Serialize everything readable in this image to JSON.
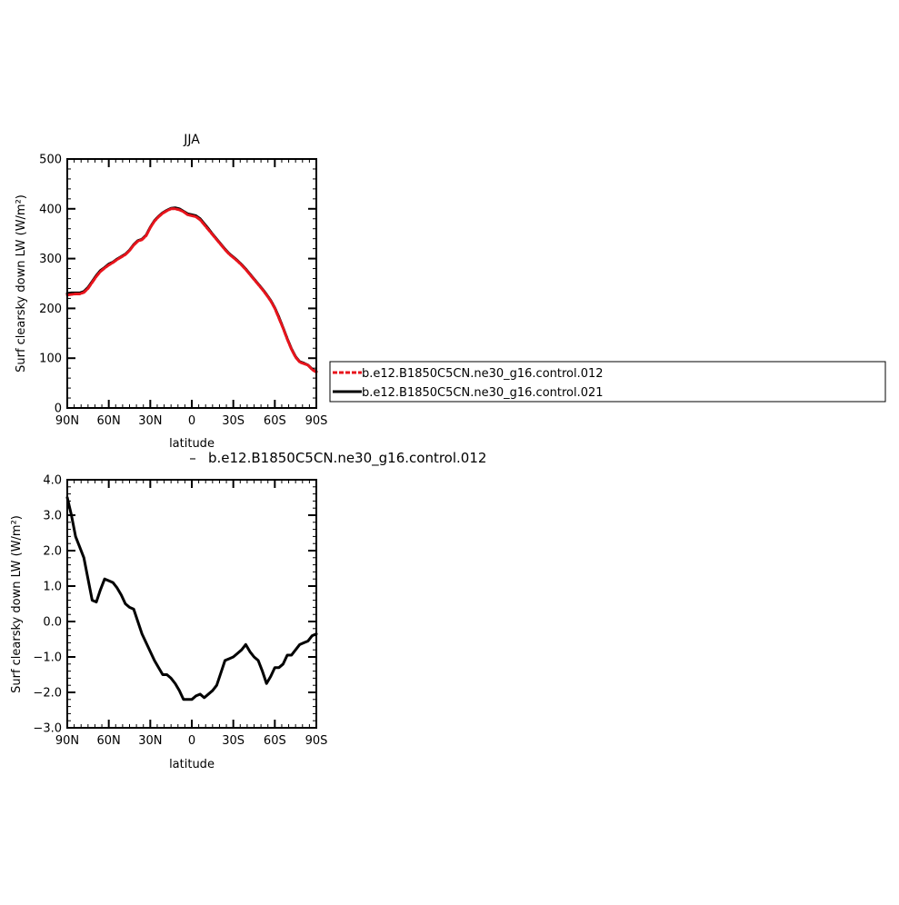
{
  "colors": {
    "axis": "#000000",
    "series_red": "#e8141c",
    "series_black": "#000000"
  },
  "chart_data": [
    {
      "type": "line",
      "title": "JJA",
      "xlabel": "latitude",
      "ylabel": "Surf clearsky down LW (W/m²)",
      "xlim": [
        90,
        -90
      ],
      "ylim": [
        0,
        500
      ],
      "xticks": [
        90,
        60,
        30,
        0,
        -30,
        -60,
        -90
      ],
      "xtick_labels": [
        "90N",
        "60N",
        "30N",
        "0",
        "30S",
        "60S",
        "90S"
      ],
      "yticks": [
        0,
        100,
        200,
        300,
        400,
        500
      ],
      "ytick_labels": [
        "0",
        "100",
        "200",
        "300",
        "400",
        "500"
      ],
      "legend_position": "right",
      "series": [
        {
          "name": "b.e12.B1850C5CN.ne30_g16.control.012",
          "color": "#e8141c",
          "dash": "dashed",
          "x": [
            90,
            87,
            84,
            81,
            78,
            75,
            72,
            69,
            66,
            63,
            60,
            57,
            54,
            51,
            48,
            45,
            42,
            39,
            36,
            33,
            30,
            27,
            24,
            21,
            18,
            15,
            12,
            9,
            6,
            3,
            0,
            -3,
            -6,
            -9,
            -12,
            -15,
            -18,
            -21,
            -24,
            -27,
            -30,
            -33,
            -36,
            -39,
            -42,
            -45,
            -48,
            -51,
            -54,
            -57,
            -60,
            -63,
            -66,
            -69,
            -72,
            -75,
            -78,
            -81,
            -84,
            -87,
            -90
          ],
          "y": [
            227,
            228,
            229,
            229,
            232,
            240,
            252,
            264,
            274,
            281,
            287,
            292,
            298,
            303,
            308,
            316,
            327,
            335,
            338,
            346,
            362,
            375,
            384,
            391,
            396,
            400,
            400,
            398,
            394,
            388,
            386,
            384,
            378,
            368,
            358,
            348,
            338,
            328,
            318,
            309,
            302,
            295,
            287,
            278,
            268,
            258,
            248,
            238,
            227,
            215,
            200,
            180,
            160,
            138,
            118,
            102,
            92,
            89,
            86,
            77,
            72
          ]
        },
        {
          "name": "b.e12.B1850C5CN.ne30_g16.control.021",
          "color": "#000000",
          "dash": "solid",
          "x": [
            90,
            87,
            84,
            81,
            78,
            75,
            72,
            69,
            66,
            63,
            60,
            57,
            54,
            51,
            48,
            45,
            42,
            39,
            36,
            33,
            30,
            27,
            24,
            21,
            18,
            15,
            12,
            9,
            6,
            3,
            0,
            -3,
            -6,
            -9,
            -12,
            -15,
            -18,
            -21,
            -24,
            -27,
            -30,
            -33,
            -36,
            -39,
            -42,
            -45,
            -48,
            -51,
            -54,
            -57,
            -60,
            -63,
            -66,
            -69,
            -72,
            -75,
            -78,
            -81,
            -84,
            -87,
            -90
          ],
          "y": [
            230,
            231,
            231,
            231,
            234,
            242,
            254,
            266,
            276,
            282,
            289,
            293,
            299,
            304,
            309,
            317,
            328,
            336,
            339,
            347,
            363,
            376,
            385,
            392,
            397,
            401,
            402,
            400,
            395,
            390,
            388,
            386,
            380,
            370,
            360,
            349,
            339,
            329,
            319,
            310,
            303,
            296,
            288,
            279,
            269,
            259,
            249,
            239,
            228,
            216,
            201,
            182,
            161,
            139,
            119,
            103,
            93,
            90,
            86,
            78,
            73
          ]
        }
      ]
    },
    {
      "type": "line",
      "title": "b.e12.B1850C5CN.ne30_g16.control.012",
      "xlabel": "latitude",
      "ylabel": "Surf clearsky down LW (W/m²)",
      "xlim": [
        90,
        -90
      ],
      "ylim": [
        -3,
        4
      ],
      "xticks": [
        90,
        60,
        30,
        0,
        -30,
        -60,
        -90
      ],
      "xtick_labels": [
        "90N",
        "60N",
        "30N",
        "0",
        "30S",
        "60S",
        "90S"
      ],
      "yticks": [
        -3,
        -2,
        -1,
        0,
        1,
        2,
        3,
        4
      ],
      "ytick_labels": [
        "−3.0",
        "−2.0",
        "−1.0",
        "0.0",
        "1.0",
        "2.0",
        "3.0",
        "4.0"
      ],
      "series": [
        {
          "color": "#000000",
          "dash": "solid",
          "x": [
            90,
            87,
            84,
            81,
            78,
            75,
            72,
            69,
            66,
            63,
            60,
            57,
            54,
            51,
            48,
            45,
            42,
            39,
            36,
            33,
            30,
            27,
            24,
            21,
            18,
            15,
            12,
            9,
            6,
            3,
            0,
            -3,
            -6,
            -9,
            -12,
            -15,
            -18,
            -21,
            -24,
            -27,
            -30,
            -33,
            -36,
            -39,
            -42,
            -45,
            -48,
            -51,
            -54,
            -57,
            -60,
            -63,
            -66,
            -69,
            -72,
            -75,
            -78,
            -81,
            -84,
            -87,
            -90
          ],
          "y": [
            3.5,
            3.0,
            2.4,
            2.1,
            1.8,
            1.2,
            0.6,
            0.55,
            0.9,
            1.2,
            1.15,
            1.1,
            0.95,
            0.75,
            0.5,
            0.4,
            0.35,
            0.0,
            -0.35,
            -0.6,
            -0.85,
            -1.1,
            -1.3,
            -1.5,
            -1.5,
            -1.6,
            -1.75,
            -1.95,
            -2.2,
            -2.2,
            -2.2,
            -2.1,
            -2.05,
            -2.15,
            -2.05,
            -1.95,
            -1.8,
            -1.45,
            -1.1,
            -1.05,
            -1.0,
            -0.9,
            -0.8,
            -0.65,
            -0.85,
            -1.0,
            -1.1,
            -1.4,
            -1.75,
            -1.55,
            -1.3,
            -1.3,
            -1.2,
            -0.95,
            -0.95,
            -0.8,
            -0.65,
            -0.6,
            -0.55,
            -0.4,
            -0.35
          ]
        }
      ]
    }
  ]
}
